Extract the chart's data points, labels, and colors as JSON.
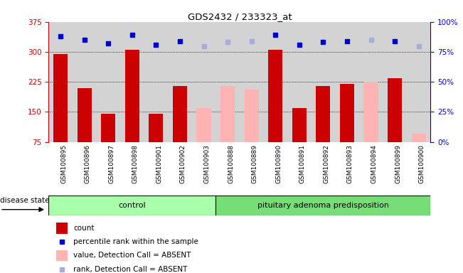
{
  "title": "GDS2432 / 233323_at",
  "samples": [
    "GSM100895",
    "GSM100896",
    "GSM100897",
    "GSM100898",
    "GSM100901",
    "GSM100902",
    "GSM100903",
    "GSM100888",
    "GSM100889",
    "GSM100890",
    "GSM100891",
    "GSM100892",
    "GSM100893",
    "GSM100894",
    "GSM100899",
    "GSM100900"
  ],
  "counts": [
    295,
    210,
    145,
    305,
    145,
    215,
    160,
    215,
    205,
    305,
    160,
    215,
    220,
    225,
    235,
    95
  ],
  "absent": [
    false,
    false,
    false,
    false,
    false,
    false,
    true,
    true,
    true,
    false,
    false,
    false,
    false,
    true,
    false,
    true
  ],
  "percentile_ranks": [
    88,
    85,
    82,
    89,
    81,
    84,
    80,
    83,
    84,
    89,
    81,
    83,
    84,
    85,
    84,
    80
  ],
  "percentile_absent": [
    false,
    false,
    false,
    false,
    false,
    false,
    true,
    true,
    true,
    false,
    false,
    false,
    false,
    true,
    false,
    true
  ],
  "group_boundary": 7,
  "group1_label": "control",
  "group2_label": "pituitary adenoma predisposition",
  "ylim_left": [
    75,
    375
  ],
  "ylim_right": [
    0,
    100
  ],
  "yticks_left": [
    75,
    150,
    225,
    300,
    375
  ],
  "yticks_right": [
    0,
    25,
    50,
    75,
    100
  ],
  "bar_color_present": "#cc0000",
  "bar_color_absent": "#ffb3b3",
  "dot_color_present": "#0000cc",
  "dot_color_absent": "#aaaadd",
  "bg_color": "#d3d3d3",
  "group1_color": "#aaffaa",
  "group2_color": "#77dd77",
  "disease_state_label": "disease state",
  "legend_items": [
    "count",
    "percentile rank within the sample",
    "value, Detection Call = ABSENT",
    "rank, Detection Call = ABSENT"
  ]
}
